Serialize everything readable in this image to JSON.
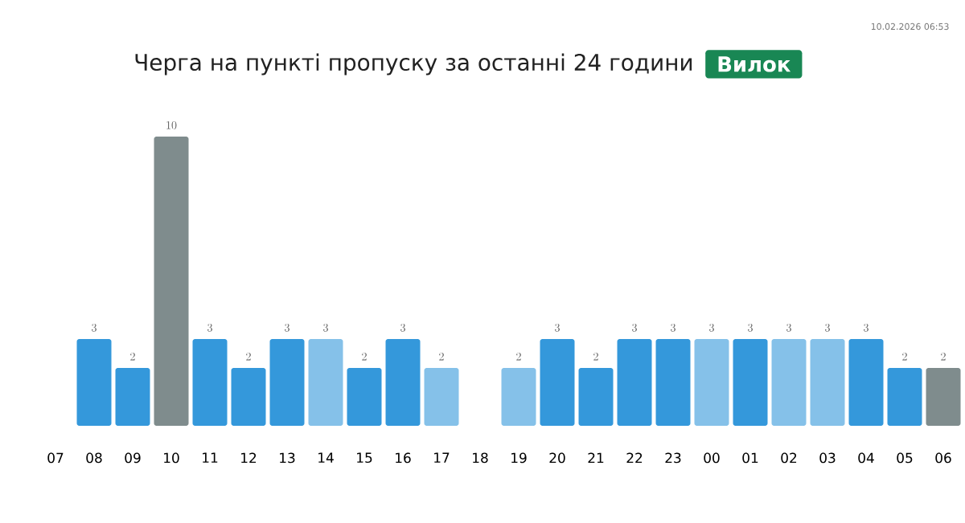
{
  "chart_data": {
    "type": "bar",
    "title": "Черга на пункті пропуску за останні 24 години",
    "subtitle": "Вилок",
    "categories": [
      "07",
      "08",
      "09",
      "10",
      "11",
      "12",
      "13",
      "14",
      "15",
      "16",
      "17",
      "18",
      "19",
      "20",
      "21",
      "22",
      "23",
      "00",
      "01",
      "02",
      "03",
      "04",
      "05",
      "06"
    ],
    "values": [
      null,
      3,
      2,
      10,
      3,
      2,
      3,
      3,
      2,
      3,
      2,
      null,
      2,
      3,
      2,
      3,
      3,
      3,
      3,
      3,
      3,
      3,
      2,
      2
    ],
    "colors": [
      "#3498db",
      "#3498db",
      "#3498db",
      "#7f8c8d",
      "#3498db",
      "#3498db",
      "#3498db",
      "#85c1e9",
      "#3498db",
      "#3498db",
      "#85c1e9",
      "#3498db",
      "#85c1e9",
      "#3498db",
      "#3498db",
      "#3498db",
      "#3498db",
      "#85c1e9",
      "#3498db",
      "#85c1e9",
      "#85c1e9",
      "#3498db",
      "#3498db",
      "#7f8c8d"
    ],
    "data_labels": true,
    "annotations": [
      "10.02.2026 06:53"
    ]
  }
}
